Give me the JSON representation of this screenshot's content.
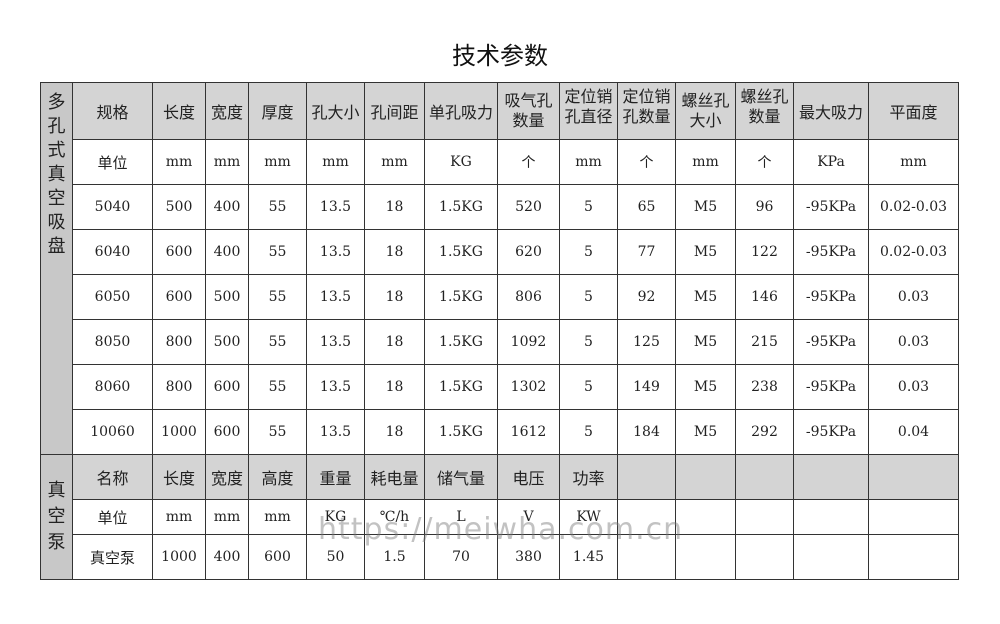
{
  "title": "技术参数",
  "suction_cup": {
    "section_label": "多孔式真空吸盘",
    "headers": [
      "规格",
      "长度",
      "宽度",
      "厚度",
      "孔大小",
      "孔间距",
      "单孔吸力",
      "吸气孔数量",
      "定位销孔直径",
      "定位销孔数量",
      "螺丝孔大小",
      "螺丝孔数量",
      "最大吸力",
      "平面度"
    ],
    "units": [
      "单位",
      "mm",
      "mm",
      "mm",
      "mm",
      "mm",
      "KG",
      "个",
      "mm",
      "个",
      "mm",
      "个",
      "KPa",
      "mm"
    ],
    "rows": [
      [
        "5040",
        "500",
        "400",
        "55",
        "13.5",
        "18",
        "1.5KG",
        "520",
        "5",
        "65",
        "M5",
        "96",
        "-95KPa",
        "0.02-0.03"
      ],
      [
        "6040",
        "600",
        "400",
        "55",
        "13.5",
        "18",
        "1.5KG",
        "620",
        "5",
        "77",
        "M5",
        "122",
        "-95KPa",
        "0.02-0.03"
      ],
      [
        "6050",
        "600",
        "500",
        "55",
        "13.5",
        "18",
        "1.5KG",
        "806",
        "5",
        "92",
        "M5",
        "146",
        "-95KPa",
        "0.03"
      ],
      [
        "8050",
        "800",
        "500",
        "55",
        "13.5",
        "18",
        "1.5KG",
        "1092",
        "5",
        "125",
        "M5",
        "215",
        "-95KPa",
        "0.03"
      ],
      [
        "8060",
        "800",
        "600",
        "55",
        "13.5",
        "18",
        "1.5KG",
        "1302",
        "5",
        "149",
        "M5",
        "238",
        "-95KPa",
        "0.03"
      ],
      [
        "10060",
        "1000",
        "600",
        "55",
        "13.5",
        "18",
        "1.5KG",
        "1612",
        "5",
        "184",
        "M5",
        "292",
        "-95KPa",
        "0.04"
      ]
    ]
  },
  "vacuum_pump": {
    "section_label": "真空泵",
    "headers": [
      "名称",
      "长度",
      "宽度",
      "高度",
      "重量",
      "耗电量",
      "储气量",
      "电压",
      "功率"
    ],
    "units": [
      "单位",
      "mm",
      "mm",
      "mm",
      "KG",
      "℃/h",
      "L",
      "V",
      "KW"
    ],
    "row": [
      "真空泵",
      "1000",
      "400",
      "600",
      "50",
      "1.5",
      "70",
      "380",
      "1.45"
    ]
  },
  "watermark": "https://meiwha.com.cn"
}
